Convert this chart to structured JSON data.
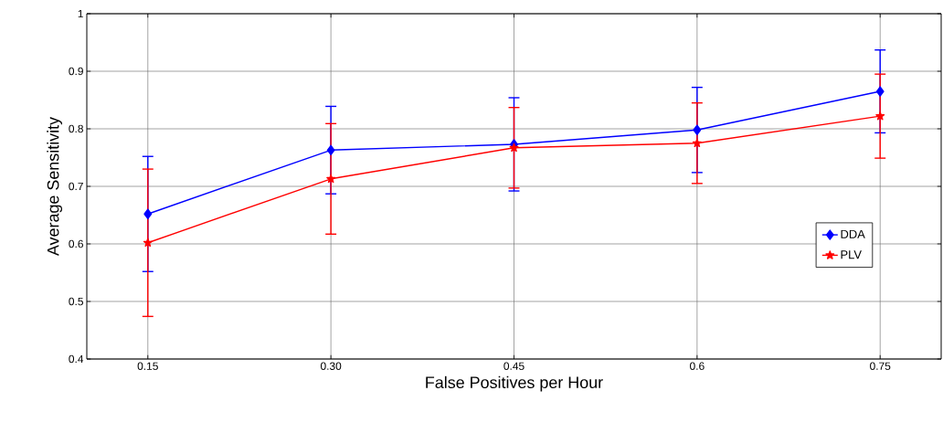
{
  "chart_data": {
    "type": "line",
    "xlabel": "False Positives per Hour",
    "ylabel": "Average Sensitivity",
    "x": [
      0.15,
      0.3,
      0.45,
      0.6,
      0.75
    ],
    "series": [
      {
        "name": "DDA",
        "color": "#0000ff",
        "marker": "diamond",
        "values": [
          0.652,
          0.763,
          0.773,
          0.798,
          0.865
        ],
        "errors": [
          0.1,
          0.076,
          0.081,
          0.074,
          0.072
        ]
      },
      {
        "name": "PLV",
        "color": "#ff0000",
        "marker": "star",
        "values": [
          0.602,
          0.713,
          0.767,
          0.775,
          0.822
        ],
        "errors": [
          0.128,
          0.096,
          0.07,
          0.07,
          0.073
        ]
      }
    ],
    "xlim": [
      0.1,
      0.8
    ],
    "xticks": [
      0.15,
      {
        "value": 0.3,
        "label": "0.30"
      },
      0.45,
      0.6,
      0.75
    ],
    "ylim": [
      0.4,
      1
    ],
    "yticks": [
      0.4,
      0.5,
      0.6,
      0.7,
      0.8,
      0.9,
      1
    ],
    "grid": true,
    "legend": "right",
    "line_style": "solid"
  }
}
